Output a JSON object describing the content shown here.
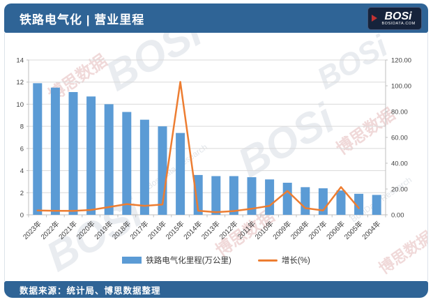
{
  "header": {
    "title": "铁路电气化 | 营业里程",
    "logo": {
      "brand": "BOSi",
      "domain": "BOSIDATA.COM"
    }
  },
  "footer": {
    "source": "数据来源：统计局、博思数据整理"
  },
  "watermark": {
    "cn": "博思数据",
    "en": "BosiData Research",
    "brand": "BOSi"
  },
  "colors": {
    "band_blue": "#2F6496",
    "bar_blue": "#5B9BD5",
    "line_orange": "#ED7D31",
    "grid": "#D9D9D9",
    "axis_line": "#BFBFBF",
    "axis_text": "#404040",
    "logo_bg": "#16233B",
    "logo_red": "#C23232"
  },
  "chart_data": {
    "type": "bar+line combo",
    "categories": [
      "2023年",
      "2022年",
      "2021年",
      "2020年",
      "2019年",
      "2018年",
      "2017年",
      "2016年",
      "2015年",
      "2014年",
      "2013年",
      "2012年",
      "2011年",
      "2010年",
      "2009年",
      "2008年",
      "2007年",
      "2006年",
      "2005年",
      "2004年"
    ],
    "series": [
      {
        "name": "铁路电气化里程(万公里)",
        "type": "bar",
        "axis": "left",
        "color": "#5B9BD5",
        "values": [
          11.9,
          11.5,
          11.1,
          10.7,
          10.0,
          9.3,
          8.6,
          8.0,
          7.4,
          3.6,
          3.5,
          3.5,
          3.4,
          3.2,
          2.9,
          2.5,
          2.4,
          2.2,
          1.9,
          1.8
        ]
      },
      {
        "name": "增长(%)",
        "type": "line",
        "axis": "right",
        "color": "#ED7D31",
        "values": [
          3.4,
          3.1,
          3.0,
          3.8,
          6.0,
          8.3,
          7.0,
          8.0,
          103.0,
          3.2,
          2.0,
          2.9,
          4.7,
          7.0,
          18.5,
          5.2,
          3.4,
          21.5,
          5.2,
          null
        ]
      }
    ],
    "left_axis": {
      "min": 0,
      "max": 14,
      "ticks": [
        "0",
        "2",
        "4",
        "6",
        "8",
        "10",
        "12",
        "14"
      ]
    },
    "right_axis": {
      "min": 0,
      "max": 120,
      "ticks": [
        "0.00",
        "20.00",
        "40.00",
        "60.00",
        "80.00",
        "100.00",
        "120.00"
      ]
    },
    "grid": true,
    "legend_position": "bottom",
    "x_labels_rotation_deg": -45
  }
}
